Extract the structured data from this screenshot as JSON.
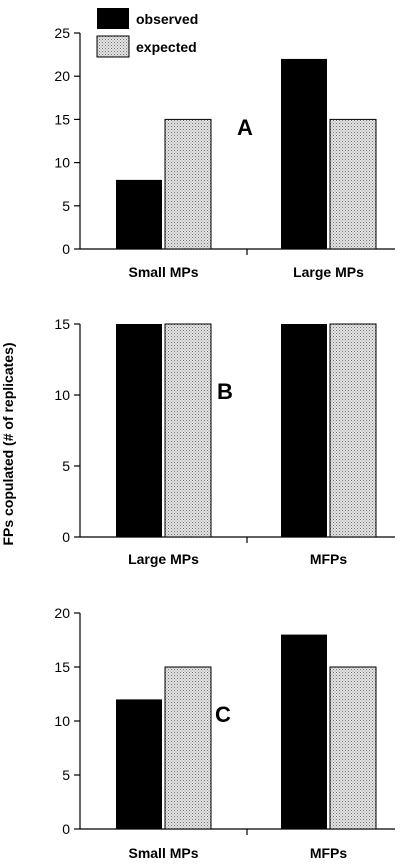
{
  "figure": {
    "ylabel": "FPs copulated (# of replicates)",
    "legend": [
      {
        "name": "observed",
        "color": "#000000",
        "pattern": "solid"
      },
      {
        "name": "expected",
        "color": "#c8c8c8",
        "pattern": "stipple"
      }
    ]
  },
  "chart_data": [
    {
      "type": "bar",
      "panel": "A",
      "categories": [
        "Small MPs",
        "Large MPs"
      ],
      "series": [
        {
          "name": "observed",
          "values": [
            8,
            22
          ]
        },
        {
          "name": "expected",
          "values": [
            15,
            15
          ]
        }
      ],
      "ylim": [
        0,
        25
      ],
      "yticks": [
        0,
        5,
        10,
        15,
        20,
        25
      ],
      "legend_position": "top-left"
    },
    {
      "type": "bar",
      "panel": "B",
      "categories": [
        "Large MPs",
        "MFPs"
      ],
      "series": [
        {
          "name": "observed",
          "values": [
            15,
            15
          ]
        },
        {
          "name": "expected",
          "values": [
            15,
            15
          ]
        }
      ],
      "ylim": [
        0,
        15
      ],
      "yticks": [
        0,
        5,
        10,
        15
      ]
    },
    {
      "type": "bar",
      "panel": "C",
      "categories": [
        "Small MPs",
        "MFPs"
      ],
      "series": [
        {
          "name": "observed",
          "values": [
            12,
            18
          ]
        },
        {
          "name": "expected",
          "values": [
            15,
            15
          ]
        }
      ],
      "ylim": [
        0,
        20
      ],
      "yticks": [
        0,
        5,
        10,
        15,
        20
      ]
    }
  ]
}
